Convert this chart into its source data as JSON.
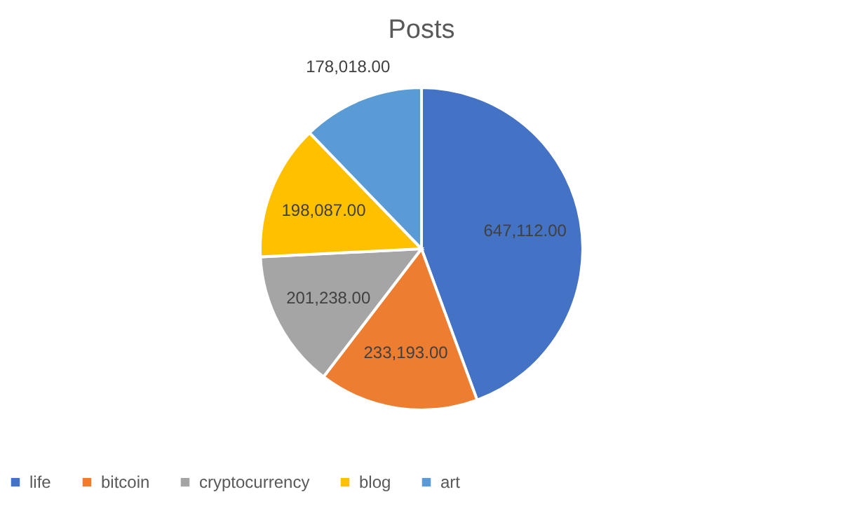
{
  "chart_data": {
    "type": "pie",
    "title": "Posts",
    "categories": [
      "life",
      "bitcoin",
      "cryptocurrency",
      "blog",
      "art"
    ],
    "values": [
      647112,
      233193,
      201238,
      198087,
      178018
    ],
    "value_labels": [
      "647,112.00",
      "233,193.00",
      "201,238.00",
      "198,087.00",
      "178,018.00"
    ],
    "colors": [
      "#4472c4",
      "#ed7d31",
      "#a5a5a5",
      "#ffc000",
      "#5b9bd5"
    ],
    "legend": "bottom"
  }
}
